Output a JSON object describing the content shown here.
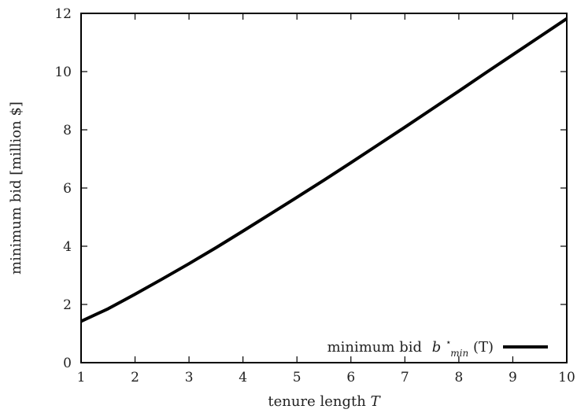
{
  "chart_data": {
    "type": "line",
    "title": "",
    "xlabel": "tenure length",
    "xlabel_var": "T",
    "ylabel": "minimum bid [million $]",
    "xlim": [
      1,
      10
    ],
    "ylim": [
      0,
      12
    ],
    "xticks": [
      1,
      2,
      3,
      4,
      5,
      6,
      7,
      8,
      9,
      10
    ],
    "yticks": [
      0,
      2,
      4,
      6,
      8,
      10,
      12
    ],
    "grid": false,
    "legend_position": "bottom-right",
    "legend": {
      "text": "minimum bid",
      "symbol": "b",
      "superscript": "⋆",
      "subscript": "min",
      "argument": "(T)"
    },
    "series": [
      {
        "name": "minimum bid b⋆min(T)",
        "color": "#000000",
        "x": [
          1,
          1.5,
          2,
          2.5,
          3,
          3.5,
          4,
          4.5,
          5,
          5.5,
          6,
          6.5,
          7,
          7.5,
          8,
          8.5,
          9,
          9.5,
          10
        ],
        "y": [
          1.42,
          1.85,
          2.35,
          2.87,
          3.4,
          3.95,
          4.52,
          5.1,
          5.68,
          6.27,
          6.87,
          7.48,
          8.09,
          8.71,
          9.33,
          9.96,
          10.58,
          11.2,
          11.82
        ]
      }
    ]
  }
}
